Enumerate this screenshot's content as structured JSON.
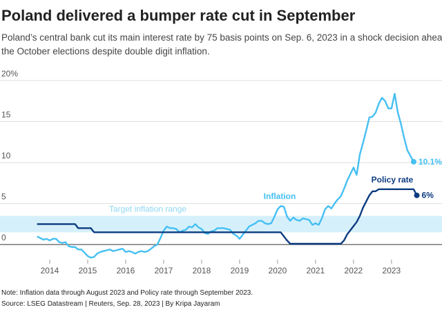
{
  "chart_data": {
    "type": "line",
    "title": "Poland delivered a bumper rate cut in September",
    "subtitle": [
      "Poland’s central bank cut its main interest rate by 75 basis points on Sep. 6, 2023 in a shock decision ahead of",
      "the October elections despite double digit inflation."
    ],
    "notes": [
      "Note: Inflation data through August 2023 and Policy rate through September 2023.",
      "Source: LSEG Datastream | Reuters, Sep. 28, 2023 | By Kripa Jayaram"
    ],
    "xlim": [
      2013,
      2024.33
    ],
    "xticks": [
      2014,
      2015,
      2016,
      2017,
      2018,
      2019,
      2020,
      2021,
      2022,
      2023
    ],
    "ylim": [
      -2,
      20
    ],
    "yticks": [
      0,
      5,
      10,
      15,
      {
        "value": 20,
        "label": "20%"
      }
    ],
    "grid": true,
    "band": {
      "label": "Target inflation range",
      "range": [
        1.5,
        3.5
      ],
      "color": "#d6f0fb"
    },
    "series": [
      {
        "name": "Inflation",
        "color": "#45bff2",
        "end_label": "10.1%",
        "x": [
          2013.667,
          2013.75,
          2013.833,
          2013.917,
          2014,
          2014.083,
          2014.167,
          2014.25,
          2014.333,
          2014.417,
          2014.5,
          2014.583,
          2014.667,
          2014.75,
          2014.833,
          2014.917,
          2015,
          2015.083,
          2015.167,
          2015.25,
          2015.333,
          2015.417,
          2015.5,
          2015.583,
          2015.667,
          2015.75,
          2015.833,
          2015.917,
          2016,
          2016.083,
          2016.167,
          2016.25,
          2016.333,
          2016.417,
          2016.5,
          2016.583,
          2016.667,
          2016.75,
          2016.833,
          2016.917,
          2017,
          2017.083,
          2017.167,
          2017.25,
          2017.333,
          2017.417,
          2017.5,
          2017.583,
          2017.667,
          2017.75,
          2017.833,
          2017.917,
          2018,
          2018.083,
          2018.167,
          2018.25,
          2018.333,
          2018.417,
          2018.5,
          2018.583,
          2018.667,
          2018.75,
          2018.833,
          2018.917,
          2019,
          2019.083,
          2019.167,
          2019.25,
          2019.333,
          2019.417,
          2019.5,
          2019.583,
          2019.667,
          2019.75,
          2019.833,
          2019.917,
          2020,
          2020.083,
          2020.167,
          2020.25,
          2020.333,
          2020.417,
          2020.5,
          2020.583,
          2020.667,
          2020.75,
          2020.833,
          2020.917,
          2021,
          2021.083,
          2021.167,
          2021.25,
          2021.333,
          2021.417,
          2021.5,
          2021.583,
          2021.667,
          2021.75,
          2021.833,
          2021.917,
          2022,
          2022.083,
          2022.167,
          2022.25,
          2022.333,
          2022.417,
          2022.5,
          2022.583,
          2022.667,
          2022.75,
          2022.833,
          2022.917,
          2023,
          2023.083,
          2023.167,
          2023.25,
          2023.333,
          2023.417,
          2023.5,
          2023.583
        ],
        "values": [
          1.0,
          0.8,
          0.6,
          0.7,
          0.5,
          0.7,
          0.7,
          0.3,
          0.2,
          0.3,
          -0.2,
          -0.3,
          -0.3,
          -0.6,
          -0.6,
          -1.0,
          -1.4,
          -1.6,
          -1.5,
          -1.1,
          -0.9,
          -0.8,
          -0.7,
          -0.6,
          -0.8,
          -0.7,
          -0.6,
          -0.5,
          -0.9,
          -0.8,
          -0.9,
          -1.1,
          -0.9,
          -0.8,
          -0.9,
          -0.8,
          -0.5,
          -0.2,
          0.0,
          0.8,
          1.7,
          2.2,
          2.0,
          2.0,
          1.9,
          1.5,
          1.7,
          1.8,
          2.2,
          2.1,
          2.5,
          2.1,
          1.9,
          1.4,
          1.3,
          1.6,
          1.7,
          2.0,
          2.0,
          2.0,
          1.9,
          1.8,
          1.3,
          1.1,
          0.7,
          1.2,
          1.7,
          2.2,
          2.4,
          2.6,
          2.9,
          2.9,
          2.6,
          2.5,
          2.6,
          3.4,
          4.3,
          4.7,
          4.6,
          3.4,
          2.9,
          3.3,
          3.0,
          2.9,
          3.2,
          3.1,
          3.0,
          2.4,
          2.6,
          2.4,
          3.2,
          4.3,
          4.7,
          4.4,
          5.0,
          5.5,
          5.9,
          6.8,
          7.8,
          8.6,
          9.4,
          8.5,
          11.0,
          12.4,
          13.9,
          15.5,
          15.6,
          16.1,
          17.2,
          17.9,
          17.5,
          16.6,
          16.6,
          18.4,
          16.1,
          14.7,
          13.0,
          11.5,
          10.8,
          10.1
        ]
      },
      {
        "name": "Policy rate",
        "color": "#0b3b80",
        "end_label": "6%",
        "x": [
          2013.667,
          2014.667,
          2014.75,
          2015.083,
          2015.167,
          2020.083,
          2020.167,
          2020.25,
          2020.333,
          2021.667,
          2021.75,
          2021.833,
          2021.917,
          2022,
          2022.083,
          2022.167,
          2022.25,
          2022.333,
          2022.417,
          2022.5,
          2022.583,
          2022.667,
          2023.583,
          2023.667
        ],
        "values": [
          2.5,
          2.5,
          2.0,
          2.0,
          1.5,
          1.5,
          1.0,
          0.5,
          0.1,
          0.1,
          0.5,
          1.25,
          1.75,
          2.25,
          2.75,
          3.5,
          4.5,
          5.25,
          6.0,
          6.5,
          6.5,
          6.75,
          6.75,
          6.0
        ]
      }
    ]
  }
}
